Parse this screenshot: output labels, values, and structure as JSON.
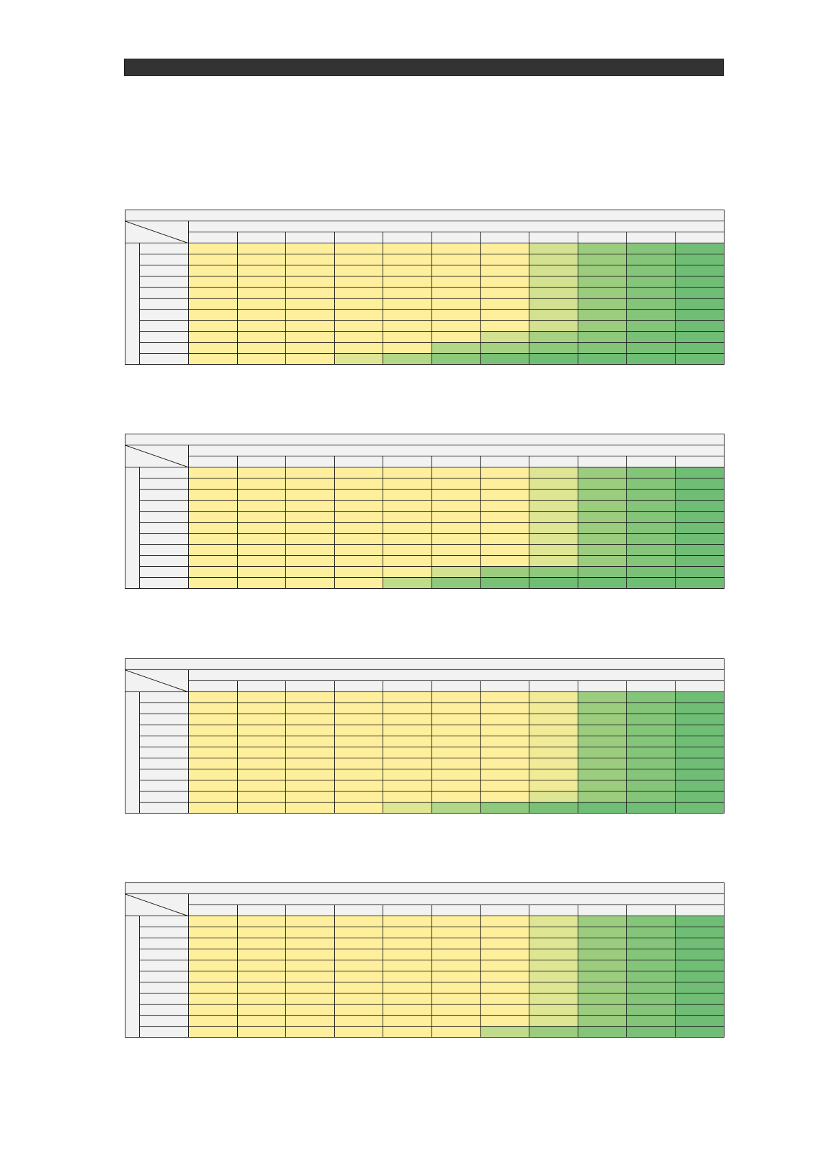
{
  "palette": {
    "y": "#feef9c",
    "y2": "#f1eb98",
    "l": "#dee693",
    "l2": "#d3e190",
    "g0": "#c0dc8b",
    "g1": "#b2d786",
    "g2": "#a7d283",
    "g3": "#9ccd7f",
    "g4": "#8fc97c",
    "g5": "#84c57a",
    "g6": "#7ac177",
    "g7": "#70be75"
  },
  "tables": [
    {
      "id": "table-1",
      "rows": [
        [
          "y",
          "y",
          "y",
          "y",
          "y",
          "y",
          "y",
          "l2",
          "g3",
          "g5",
          "g7"
        ],
        [
          "y",
          "y",
          "y",
          "y",
          "y",
          "y",
          "y",
          "l2",
          "g3",
          "g5",
          "g7"
        ],
        [
          "y",
          "y",
          "y",
          "y",
          "y",
          "y",
          "y",
          "l2",
          "g3",
          "g5",
          "g7"
        ],
        [
          "y",
          "y",
          "y",
          "y",
          "y",
          "y",
          "y",
          "l2",
          "g3",
          "g5",
          "g7"
        ],
        [
          "y",
          "y",
          "y",
          "y",
          "y",
          "y",
          "y",
          "l2",
          "g3",
          "g5",
          "g7"
        ],
        [
          "y",
          "y",
          "y",
          "y",
          "y",
          "y",
          "y",
          "l2",
          "g3",
          "g5",
          "g7"
        ],
        [
          "y",
          "y",
          "y",
          "y",
          "y",
          "y",
          "y",
          "l2",
          "g3",
          "g5",
          "g7"
        ],
        [
          "y",
          "y",
          "y",
          "y",
          "y",
          "y",
          "y",
          "l2",
          "g3",
          "g5",
          "g7"
        ],
        [
          "y",
          "y",
          "y",
          "y",
          "y",
          "y",
          "l2",
          "g2",
          "g4",
          "g6",
          "g7"
        ],
        [
          "y",
          "y",
          "y",
          "y",
          "y",
          "g1",
          "g2",
          "g4",
          "g5",
          "g6",
          "g7"
        ],
        [
          "y",
          "y",
          "y",
          "l",
          "g1",
          "g4",
          "g6",
          "g7",
          "g7",
          "g7",
          "g7"
        ]
      ]
    },
    {
      "id": "table-2",
      "rows": [
        [
          "y",
          "y",
          "y",
          "y",
          "y",
          "y",
          "y",
          "l",
          "g3",
          "g5",
          "g7"
        ],
        [
          "y",
          "y",
          "y",
          "y",
          "y",
          "y",
          "y",
          "l",
          "g3",
          "g5",
          "g7"
        ],
        [
          "y",
          "y",
          "y",
          "y",
          "y",
          "y",
          "y",
          "l",
          "g3",
          "g5",
          "g7"
        ],
        [
          "y",
          "y",
          "y",
          "y",
          "y",
          "y",
          "y",
          "l",
          "g3",
          "g5",
          "g7"
        ],
        [
          "y",
          "y",
          "y",
          "y",
          "y",
          "y",
          "y",
          "l",
          "g3",
          "g5",
          "g7"
        ],
        [
          "y",
          "y",
          "y",
          "y",
          "y",
          "y",
          "y",
          "l",
          "g3",
          "g5",
          "g7"
        ],
        [
          "y",
          "y",
          "y",
          "y",
          "y",
          "y",
          "y",
          "l",
          "g3",
          "g5",
          "g7"
        ],
        [
          "y",
          "y",
          "y",
          "y",
          "y",
          "y",
          "y",
          "l",
          "g3",
          "g5",
          "g7"
        ],
        [
          "y",
          "y",
          "y",
          "y",
          "y",
          "y",
          "y",
          "l",
          "g3",
          "g5",
          "g7"
        ],
        [
          "y",
          "y",
          "y",
          "y",
          "y",
          "l2",
          "g3",
          "g4",
          "g5",
          "g6",
          "g7"
        ],
        [
          "y",
          "y",
          "y",
          "y",
          "g0",
          "g4",
          "g6",
          "g7",
          "g7",
          "g7",
          "g7"
        ]
      ]
    },
    {
      "id": "table-3",
      "rows": [
        [
          "y",
          "y",
          "y",
          "y",
          "y",
          "y",
          "y",
          "y2",
          "g3",
          "g5",
          "g7"
        ],
        [
          "y",
          "y",
          "y",
          "y",
          "y",
          "y",
          "y",
          "y2",
          "g3",
          "g5",
          "g7"
        ],
        [
          "y",
          "y",
          "y",
          "y",
          "y",
          "y",
          "y",
          "y2",
          "g3",
          "g5",
          "g7"
        ],
        [
          "y",
          "y",
          "y",
          "y",
          "y",
          "y",
          "y",
          "y2",
          "g3",
          "g5",
          "g7"
        ],
        [
          "y",
          "y",
          "y",
          "y",
          "y",
          "y",
          "y",
          "y2",
          "g3",
          "g5",
          "g7"
        ],
        [
          "y",
          "y",
          "y",
          "y",
          "y",
          "y",
          "y",
          "y2",
          "g3",
          "g5",
          "g7"
        ],
        [
          "y",
          "y",
          "y",
          "y",
          "y",
          "y",
          "y",
          "y2",
          "g3",
          "g5",
          "g7"
        ],
        [
          "y",
          "y",
          "y",
          "y",
          "y",
          "y",
          "y",
          "y2",
          "g3",
          "g5",
          "g7"
        ],
        [
          "y",
          "y",
          "y",
          "y",
          "y",
          "y",
          "y",
          "y2",
          "g3",
          "g5",
          "g7"
        ],
        [
          "y",
          "y",
          "y",
          "y",
          "y",
          "y",
          "y",
          "l",
          "g3",
          "g5",
          "g7"
        ],
        [
          "y",
          "y",
          "y",
          "y",
          "l",
          "g1",
          "g4",
          "g6",
          "g7",
          "g7",
          "g7"
        ]
      ]
    },
    {
      "id": "table-4",
      "rows": [
        [
          "y",
          "y",
          "y",
          "y",
          "y",
          "y",
          "y",
          "l",
          "g3",
          "g5",
          "g7"
        ],
        [
          "y",
          "y",
          "y",
          "y",
          "y",
          "y",
          "y",
          "l",
          "g3",
          "g5",
          "g7"
        ],
        [
          "y",
          "y",
          "y",
          "y",
          "y",
          "y",
          "y",
          "l",
          "g3",
          "g5",
          "g7"
        ],
        [
          "y",
          "y",
          "y",
          "y",
          "y",
          "y",
          "y",
          "l",
          "g3",
          "g5",
          "g7"
        ],
        [
          "y",
          "y",
          "y",
          "y",
          "y",
          "y",
          "y",
          "l",
          "g3",
          "g5",
          "g7"
        ],
        [
          "y",
          "y",
          "y",
          "y",
          "y",
          "y",
          "y",
          "l",
          "g3",
          "g5",
          "g7"
        ],
        [
          "y",
          "y",
          "y",
          "y",
          "y",
          "y",
          "y",
          "l",
          "g3",
          "g5",
          "g7"
        ],
        [
          "y",
          "y",
          "y",
          "y",
          "y",
          "y",
          "y",
          "l",
          "g3",
          "g5",
          "g7"
        ],
        [
          "y",
          "y",
          "y",
          "y",
          "y",
          "y",
          "y",
          "l",
          "g3",
          "g5",
          "g7"
        ],
        [
          "y",
          "y",
          "y",
          "y",
          "y",
          "y",
          "y",
          "l",
          "g3",
          "g5",
          "g7"
        ],
        [
          "y",
          "y",
          "y",
          "y",
          "y",
          "y",
          "g0",
          "g3",
          "g5",
          "g6",
          "g7"
        ]
      ]
    }
  ]
}
